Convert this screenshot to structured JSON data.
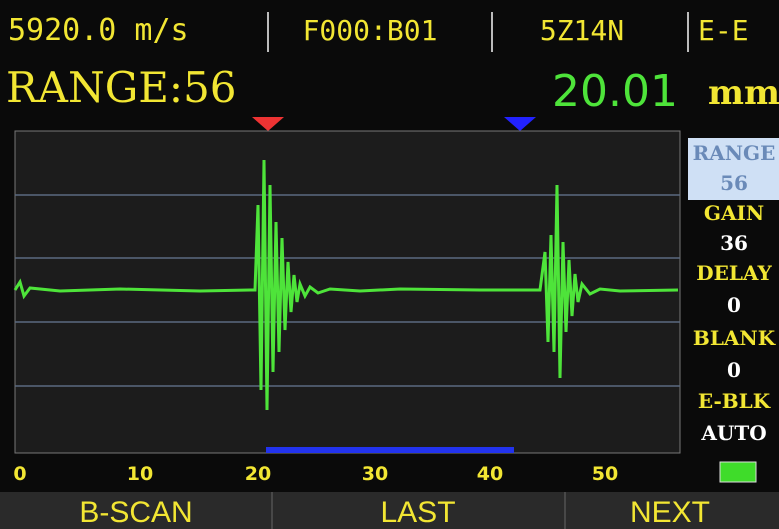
{
  "header": {
    "velocity": "5920.0 m/s",
    "gate": "F000:B01",
    "probe": "5Z14N",
    "mode": "E-E"
  },
  "status": {
    "range": "RANGE:56",
    "thickness": "20.01",
    "unit": "mm"
  },
  "menu": [
    {
      "label": "RANGE",
      "value": "56"
    },
    {
      "label": "GAIN",
      "value": "36"
    },
    {
      "label": "DELAY",
      "value": "0"
    },
    {
      "label": "BLANK",
      "value": "0"
    },
    {
      "label": "E-BLK",
      "value": "AUTO"
    }
  ],
  "axis": {
    "ticks": [
      "0",
      "10",
      "20",
      "30",
      "40",
      "50"
    ]
  },
  "buttons": [
    "B-SCAN",
    "LAST",
    "NEXT"
  ]
}
